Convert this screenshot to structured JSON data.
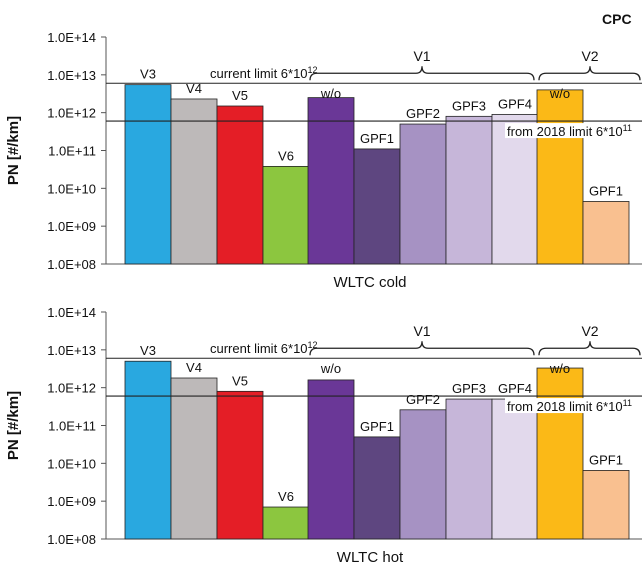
{
  "corner_label": "CPC",
  "chart_data": [
    {
      "type": "bar",
      "scale": "log",
      "xlabel": "WLTC cold",
      "ylabel": "PN [#/km]",
      "ylim": [
        100000000.0,
        100000000000000.0
      ],
      "y_ticks": [
        "1.0E+08",
        "1.0E+09",
        "1.0E+10",
        "1.0E+11",
        "1.0E+12",
        "1.0E+13",
        "1.0E+14"
      ],
      "categories": [
        "V3",
        "V4",
        "V5",
        "V6",
        "w/o",
        "GPF1",
        "GPF2",
        "GPF3",
        "GPF4",
        "w/o",
        "GPF1"
      ],
      "values": [
        5500000000000.0,
        2300000000000.0,
        1500000000000.0,
        38000000000.0,
        2500000000000.0,
        110000000000.0,
        500000000000.0,
        800000000000.0,
        900000000000.0,
        4000000000000.0,
        4500000000.0
      ],
      "colors": [
        "#29a8e0",
        "#bdb9b9",
        "#e41e26",
        "#8cc63f",
        "#6a3797",
        "#5e4680",
        "#a692c3",
        "#c6b6d9",
        "#e2d9ec",
        "#fbb917",
        "#f9c090"
      ],
      "groups": [
        {
          "label": "V1"
        },
        {
          "label": "V2"
        }
      ],
      "limit_lines": [
        {
          "value": 6000000000000.0,
          "label": "current limit 6*10",
          "sup": "12"
        },
        {
          "value": 600000000000.0,
          "label": "from 2018 limit 6*10",
          "sup": "11"
        }
      ]
    },
    {
      "type": "bar",
      "scale": "log",
      "xlabel": "WLTC hot",
      "ylabel": "PN [#/km]",
      "ylim": [
        100000000.0,
        100000000000000.0
      ],
      "y_ticks": [
        "1.0E+08",
        "1.0E+09",
        "1.0E+10",
        "1.0E+11",
        "1.0E+12",
        "1.0E+13",
        "1.0E+14"
      ],
      "categories": [
        "V3",
        "V4",
        "V5",
        "V6",
        "w/o",
        "GPF1",
        "GPF2",
        "GPF3",
        "GPF4",
        "w/o",
        "GPF1"
      ],
      "values": [
        5000000000000.0,
        1800000000000.0,
        800000000000.0,
        700000000.0,
        1600000000000.0,
        50000000000.0,
        260000000000.0,
        500000000000.0,
        500000000000.0,
        3300000000000.0,
        6500000000.0
      ],
      "colors": [
        "#29a8e0",
        "#bdb9b9",
        "#e41e26",
        "#8cc63f",
        "#6a3797",
        "#5e4680",
        "#a692c3",
        "#c6b6d9",
        "#e2d9ec",
        "#fbb917",
        "#f9c090"
      ],
      "groups": [
        {
          "label": "V1"
        },
        {
          "label": "V2"
        }
      ],
      "limit_lines": [
        {
          "value": 6000000000000.0,
          "label": "current limit 6*10",
          "sup": "12"
        },
        {
          "value": 600000000000.0,
          "label": "from 2018 limit 6*10",
          "sup": "11"
        }
      ]
    }
  ]
}
